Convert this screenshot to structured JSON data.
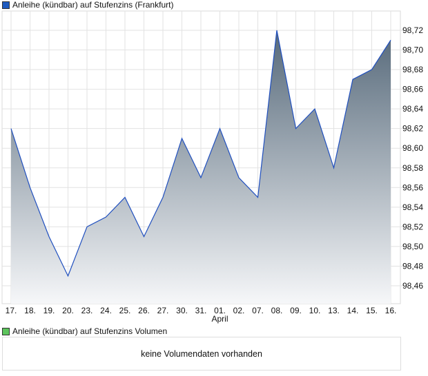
{
  "legend_price": "Anleihe (kündbar) auf Stufenzins (Frankfurt)",
  "legend_volume": "Anleihe (kündbar) auf Stufenzins Volumen",
  "volume_message": "keine Volumendaten vorhanden",
  "colors": {
    "price_swatch": "#1f5bbf",
    "volume_swatch": "#5cc45c",
    "line": "#1f4fbf",
    "fill_top": "#56697a",
    "fill_bottom": "#f6f7f9"
  },
  "chart_data": {
    "type": "area",
    "title": "Anleihe (kündbar) auf Stufenzins (Frankfurt)",
    "categories": [
      "17.",
      "18.",
      "19.",
      "20.",
      "23.",
      "24.",
      "25.",
      "26.",
      "27.",
      "30.",
      "31.",
      "01.",
      "02.",
      "07.",
      "08.",
      "09.",
      "10.",
      "13.",
      "14.",
      "15.",
      "16."
    ],
    "values": [
      98.62,
      98.56,
      98.51,
      98.47,
      98.52,
      98.53,
      98.55,
      98.51,
      98.55,
      98.61,
      98.57,
      98.62,
      98.57,
      98.55,
      98.72,
      98.62,
      98.64,
      98.58,
      98.67,
      98.68,
      98.71
    ],
    "month_label": "April",
    "yticks": [
      "98,46",
      "98,48",
      "98,50",
      "98,52",
      "98,54",
      "98,56",
      "98,58",
      "98,60",
      "98,62",
      "98,64",
      "98,66",
      "98,68",
      "98,70",
      "98,72"
    ],
    "ylim": [
      98.437,
      98.74
    ],
    "grid": true
  }
}
